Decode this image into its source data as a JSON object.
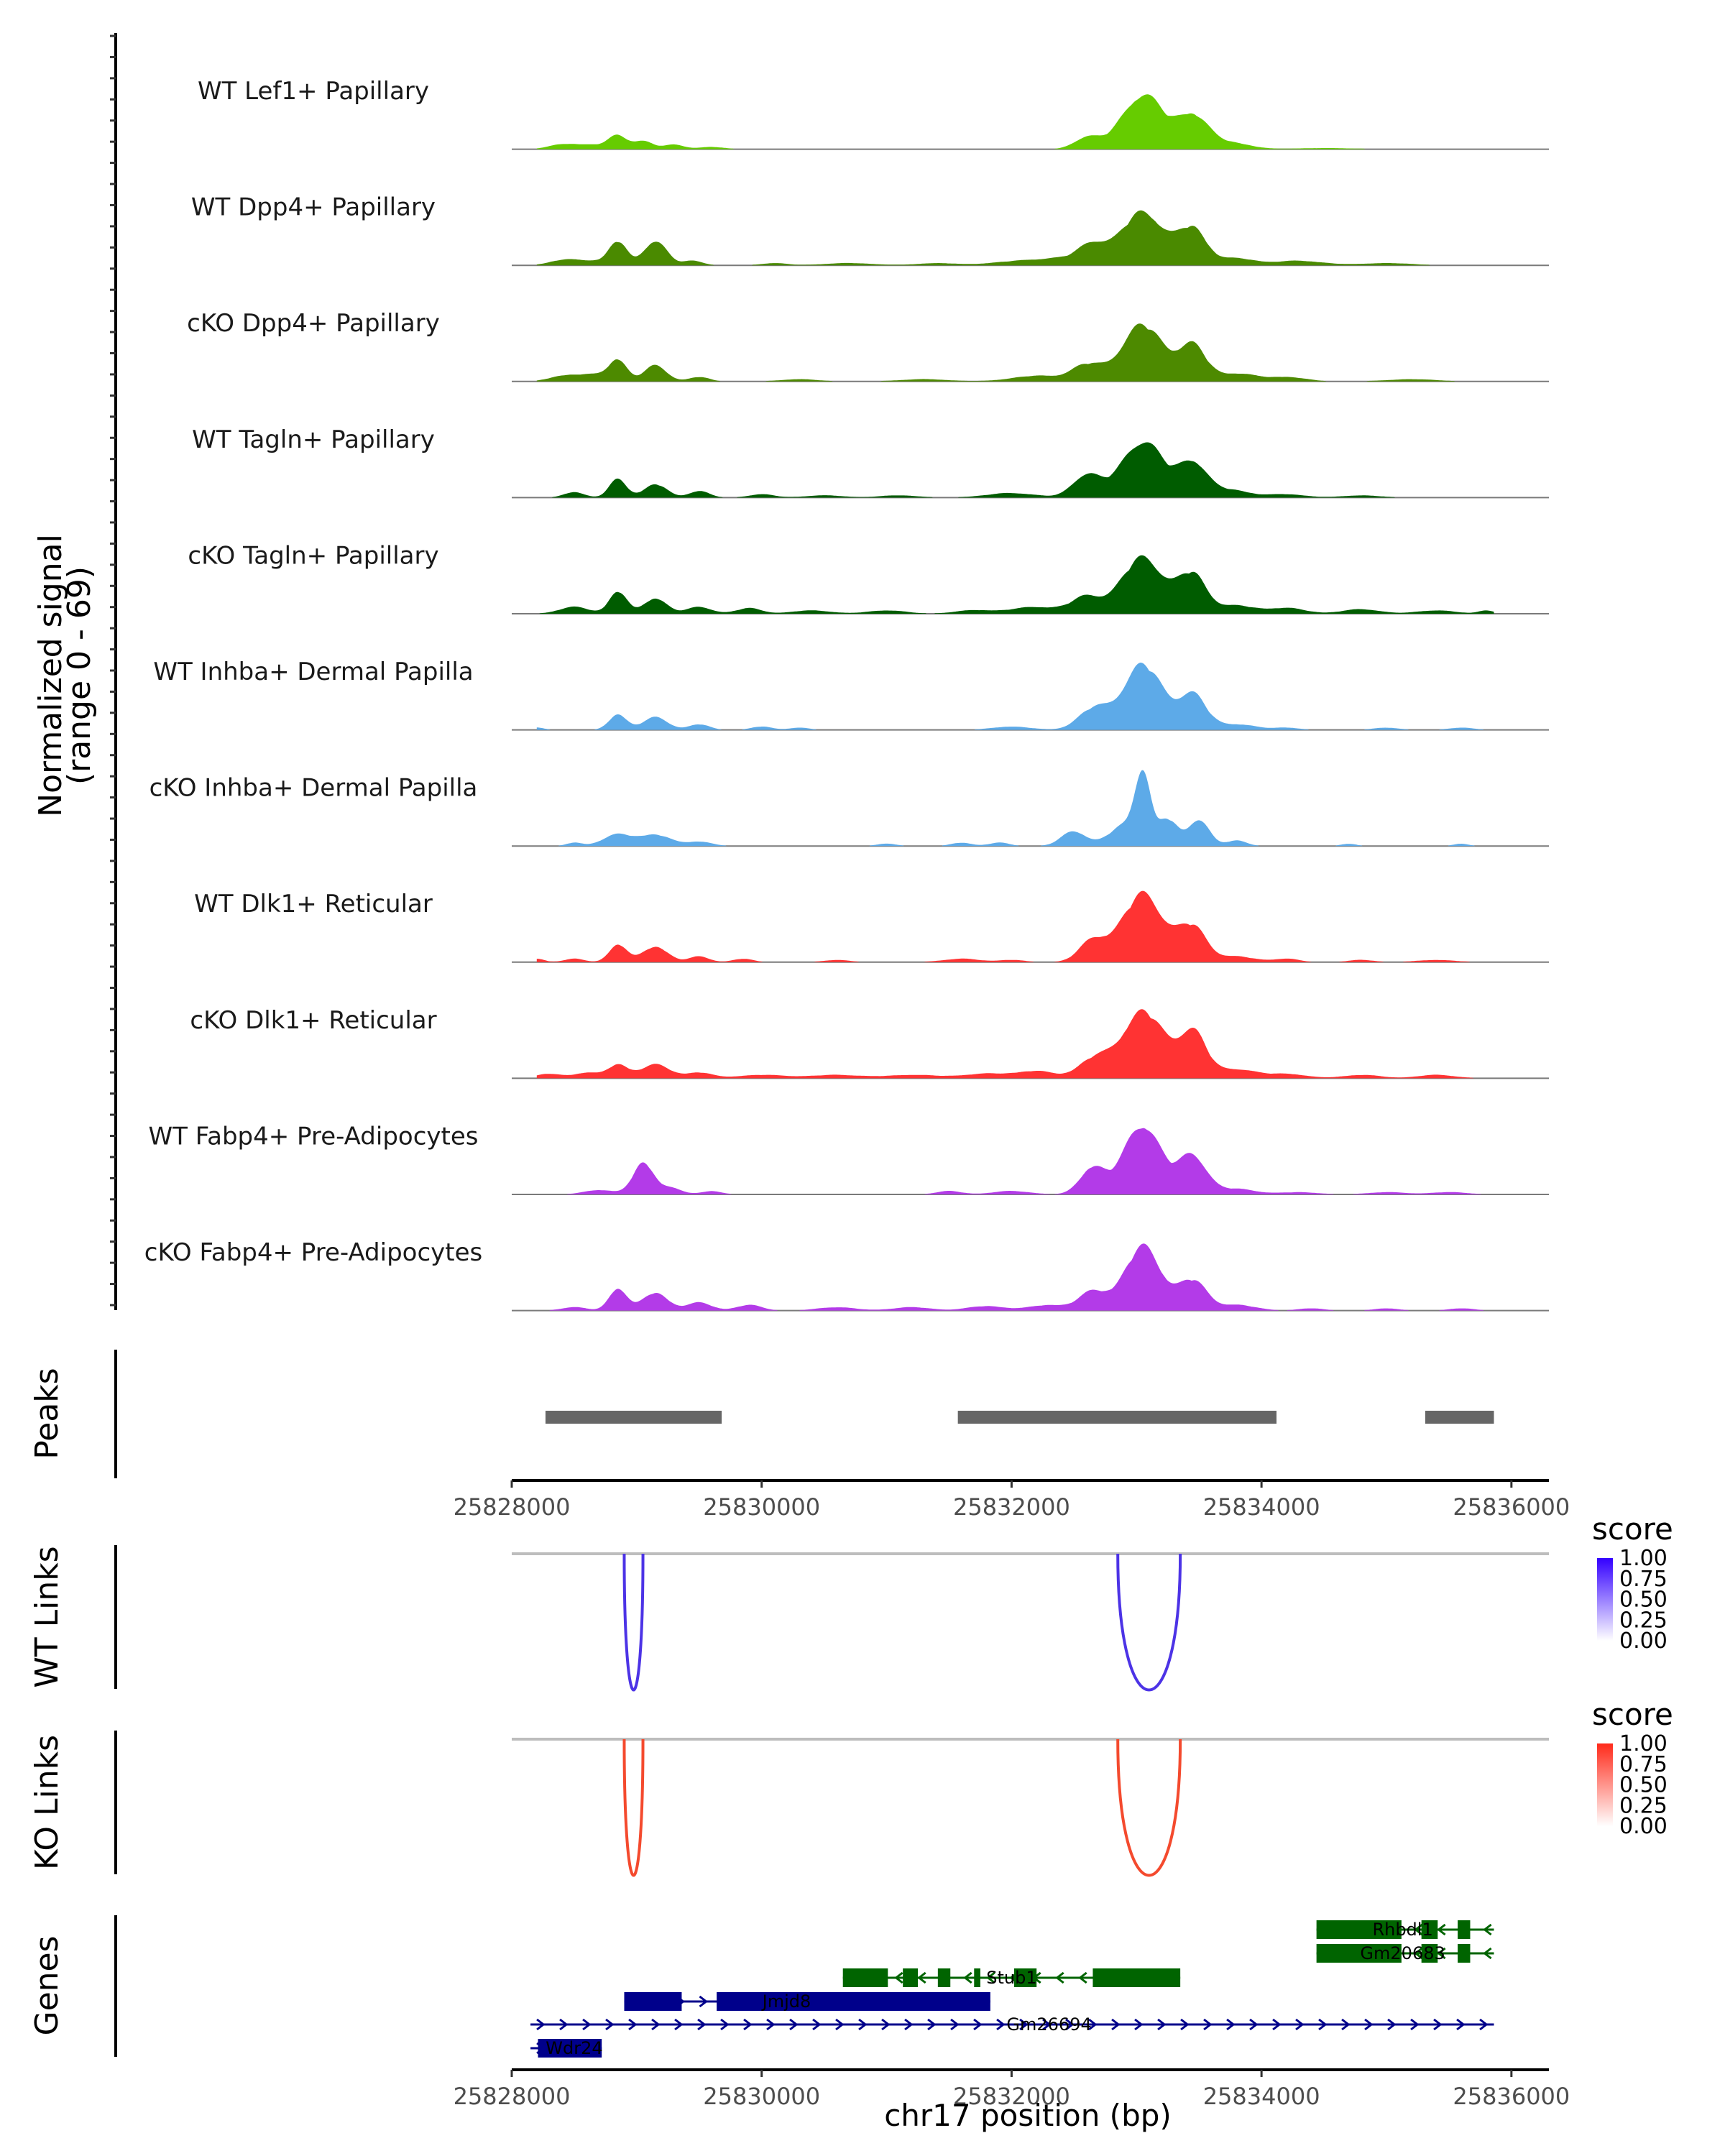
{
  "chart_data": {
    "type": "area",
    "title": "",
    "chromosome": "chr17",
    "xlabel": "chr17 position (bp)",
    "ylabel": "Normalized signal",
    "ylabel_range": "(range 0 - 69)",
    "xlim": [
      25828000,
      25836300
    ],
    "ylim": [
      0,
      69
    ],
    "x_ticks": [
      25828000,
      25830000,
      25832000,
      25834000,
      25836000
    ],
    "tick_labels": [
      "25828000",
      "25830000",
      "25832000",
      "25834000",
      "25836000"
    ],
    "coverage_tracks": [
      {
        "name": "WT Lef1+ Papillary",
        "color": "#66CC00",
        "bumps": [
          [
            25828400,
            3,
            110
          ],
          [
            25828650,
            4,
            180
          ],
          [
            25828850,
            10,
            70
          ],
          [
            25829050,
            7,
            80
          ],
          [
            25829300,
            4,
            80
          ],
          [
            25829600,
            2,
            100
          ],
          [
            25832600,
            10,
            100
          ],
          [
            25833050,
            48,
            170
          ],
          [
            25833450,
            29,
            120
          ],
          [
            25833750,
            6,
            150
          ],
          [
            25834500,
            1,
            250
          ]
        ]
      },
      {
        "name": "WT Dpp4+ Papillary",
        "color": "#4A8A00",
        "bumps": [
          [
            25828400,
            4,
            110
          ],
          [
            25828650,
            4,
            150
          ],
          [
            25828850,
            20,
            70
          ],
          [
            25829150,
            22,
            90
          ],
          [
            25829450,
            4,
            80
          ],
          [
            25830100,
            2,
            100
          ],
          [
            25830700,
            2,
            200
          ],
          [
            25831400,
            2,
            150
          ],
          [
            25832000,
            3,
            200
          ],
          [
            25832400,
            6,
            200
          ],
          [
            25832650,
            16,
            110
          ],
          [
            25833050,
            48,
            170
          ],
          [
            25833450,
            32,
            110
          ],
          [
            25833800,
            6,
            150
          ],
          [
            25834300,
            4,
            200
          ],
          [
            25835000,
            2,
            200
          ]
        ]
      },
      {
        "name": "cKO Dpp4+ Papillary",
        "color": "#4D8A00",
        "bumps": [
          [
            25828400,
            4,
            110
          ],
          [
            25828650,
            6,
            150
          ],
          [
            25828850,
            18,
            70
          ],
          [
            25829150,
            14,
            90
          ],
          [
            25829500,
            4,
            80
          ],
          [
            25830300,
            2,
            150
          ],
          [
            25831300,
            2,
            200
          ],
          [
            25832200,
            5,
            200
          ],
          [
            25832600,
            14,
            120
          ],
          [
            25833050,
            50,
            170
          ],
          [
            25833450,
            30,
            110
          ],
          [
            25833800,
            7,
            150
          ],
          [
            25834200,
            4,
            150
          ],
          [
            25835200,
            2,
            200
          ]
        ]
      },
      {
        "name": "WT Tagln+ Papillary",
        "color": "#005C00",
        "bumps": [
          [
            25828500,
            5,
            80
          ],
          [
            25828850,
            16,
            70
          ],
          [
            25829150,
            12,
            90
          ],
          [
            25829500,
            6,
            80
          ],
          [
            25830000,
            3,
            100
          ],
          [
            25830500,
            2,
            150
          ],
          [
            25831100,
            2,
            150
          ],
          [
            25832000,
            4,
            200
          ],
          [
            25832600,
            20,
            110
          ],
          [
            25833050,
            50,
            170
          ],
          [
            25833450,
            30,
            110
          ],
          [
            25833750,
            7,
            150
          ],
          [
            25834200,
            3,
            150
          ],
          [
            25834800,
            2,
            150
          ]
        ]
      },
      {
        "name": "cKO Tagln+ Papillary",
        "color": "#005C00",
        "bumps": [
          [
            25828500,
            6,
            120
          ],
          [
            25828850,
            20,
            70
          ],
          [
            25829150,
            14,
            90
          ],
          [
            25829500,
            6,
            100
          ],
          [
            25829900,
            5,
            100
          ],
          [
            25830400,
            3,
            150
          ],
          [
            25831000,
            3,
            150
          ],
          [
            25831700,
            3,
            150
          ],
          [
            25832200,
            6,
            200
          ],
          [
            25832600,
            14,
            120
          ],
          [
            25833050,
            50,
            170
          ],
          [
            25833450,
            34,
            110
          ],
          [
            25833800,
            7,
            150
          ],
          [
            25834200,
            5,
            150
          ],
          [
            25834800,
            4,
            150
          ],
          [
            25835400,
            3,
            150
          ],
          [
            25835800,
            3,
            60
          ]
        ]
      },
      {
        "name": "WT Inhba+ Dermal Papilla",
        "color": "#5DAAE8",
        "bumps": [
          [
            25828200,
            2,
            60
          ],
          [
            25828850,
            14,
            70
          ],
          [
            25829150,
            11,
            100
          ],
          [
            25829500,
            5,
            80
          ],
          [
            25830000,
            3,
            80
          ],
          [
            25830300,
            2,
            80
          ],
          [
            25832000,
            3,
            150
          ],
          [
            25832650,
            18,
            120
          ],
          [
            25833050,
            58,
            160
          ],
          [
            25833450,
            30,
            110
          ],
          [
            25833800,
            5,
            150
          ],
          [
            25834200,
            2,
            100
          ],
          [
            25835000,
            2,
            100
          ],
          [
            25835600,
            2,
            100
          ]
        ]
      },
      {
        "name": "cKO Inhba+ Dermal Papilla",
        "color": "#5DAAE8",
        "bumps": [
          [
            25828500,
            3,
            60
          ],
          [
            25828850,
            10,
            120
          ],
          [
            25829150,
            10,
            120
          ],
          [
            25829500,
            4,
            100
          ],
          [
            25831000,
            2,
            80
          ],
          [
            25831600,
            3,
            80
          ],
          [
            25831900,
            3,
            80
          ],
          [
            25832500,
            13,
            100
          ],
          [
            25832900,
            18,
            120
          ],
          [
            25833050,
            62,
            60
          ],
          [
            25833250,
            24,
            80
          ],
          [
            25833500,
            24,
            80
          ],
          [
            25833800,
            5,
            80
          ],
          [
            25834700,
            2,
            60
          ],
          [
            25835600,
            2,
            60
          ]
        ]
      },
      {
        "name": "WT Dlk1+ Reticular",
        "color": "#FF3333",
        "bumps": [
          [
            25828200,
            3,
            60
          ],
          [
            25828500,
            3,
            80
          ],
          [
            25828850,
            16,
            70
          ],
          [
            25829150,
            14,
            100
          ],
          [
            25829500,
            5,
            80
          ],
          [
            25829850,
            3,
            80
          ],
          [
            25830600,
            2,
            100
          ],
          [
            25831600,
            3,
            150
          ],
          [
            25832000,
            2,
            100
          ],
          [
            25832650,
            18,
            110
          ],
          [
            25833050,
            60,
            170
          ],
          [
            25833450,
            30,
            110
          ],
          [
            25833800,
            5,
            150
          ],
          [
            25834200,
            3,
            100
          ],
          [
            25834800,
            2,
            100
          ],
          [
            25835400,
            2,
            150
          ]
        ]
      },
      {
        "name": "cKO Dlk1+ Reticular",
        "color": "#FF3333",
        "bumps": [
          [
            25828300,
            4,
            100
          ],
          [
            25828600,
            5,
            100
          ],
          [
            25828850,
            12,
            80
          ],
          [
            25829150,
            12,
            120
          ],
          [
            25829500,
            5,
            100
          ],
          [
            25830000,
            3,
            200
          ],
          [
            25830600,
            3,
            200
          ],
          [
            25831200,
            3,
            200
          ],
          [
            25831800,
            4,
            200
          ],
          [
            25832200,
            6,
            150
          ],
          [
            25832650,
            16,
            120
          ],
          [
            25833050,
            60,
            170
          ],
          [
            25833450,
            40,
            110
          ],
          [
            25833800,
            8,
            150
          ],
          [
            25834200,
            4,
            150
          ],
          [
            25834800,
            3,
            150
          ],
          [
            25835400,
            3,
            150
          ]
        ]
      },
      {
        "name": "WT Fabp4+ Pre-Adipocytes",
        "color": "#B33BE8",
        "bumps": [
          [
            25828700,
            4,
            120
          ],
          [
            25829050,
            28,
            80
          ],
          [
            25829250,
            6,
            100
          ],
          [
            25829600,
            3,
            80
          ],
          [
            25831500,
            3,
            100
          ],
          [
            25832000,
            3,
            150
          ],
          [
            25832650,
            24,
            100
          ],
          [
            25833050,
            62,
            150
          ],
          [
            25833450,
            34,
            110
          ],
          [
            25833800,
            5,
            150
          ],
          [
            25834300,
            2,
            150
          ],
          [
            25835000,
            2,
            150
          ],
          [
            25835500,
            2,
            150
          ]
        ]
      },
      {
        "name": "cKO Fabp4+ Pre-Adipocytes",
        "color": "#B33BE8",
        "bumps": [
          [
            25828500,
            3,
            100
          ],
          [
            25828850,
            20,
            70
          ],
          [
            25829150,
            16,
            100
          ],
          [
            25829500,
            7,
            100
          ],
          [
            25829900,
            5,
            100
          ],
          [
            25830600,
            3,
            150
          ],
          [
            25831200,
            3,
            150
          ],
          [
            25831800,
            4,
            150
          ],
          [
            25832300,
            5,
            150
          ],
          [
            25832650,
            16,
            110
          ],
          [
            25833050,
            56,
            150
          ],
          [
            25833450,
            26,
            110
          ],
          [
            25833800,
            5,
            150
          ],
          [
            25834400,
            2,
            100
          ],
          [
            25835000,
            2,
            100
          ],
          [
            25835600,
            2,
            100
          ]
        ]
      }
    ],
    "peaks": {
      "label": "Peaks",
      "color": "#666666",
      "regions": [
        [
          25828270,
          25829680
        ],
        [
          25831570,
          25834120
        ],
        [
          25835310,
          25835860
        ]
      ]
    },
    "link_tracks": [
      {
        "label": "WT Links",
        "color": "#4C33E6",
        "legend_colors": [
          "#3300FF",
          "#FFFFFF"
        ],
        "links": [
          {
            "start": 25828900,
            "end": 25829050,
            "score": 1.0
          },
          {
            "start": 25832850,
            "end": 25833350,
            "score": 0.9
          }
        ]
      },
      {
        "label": "KO Links",
        "color": "#F44A2E",
        "legend_colors": [
          "#FF2A1A",
          "#FFFFFF"
        ],
        "links": [
          {
            "start": 25828900,
            "end": 25829050,
            "score": 1.0
          },
          {
            "start": 25832850,
            "end": 25833350,
            "score": 0.9
          }
        ]
      }
    ],
    "legend": {
      "title": "score",
      "ticks": [
        "1.00",
        "0.75",
        "0.50",
        "0.25",
        "0.00"
      ]
    },
    "genes": {
      "label": "Genes",
      "items": [
        {
          "name": "Rhbdl1",
          "strand": "-",
          "color": "#006400",
          "start": 25834440,
          "end": 25835860,
          "exons": [
            [
              25834440,
              25835120
            ],
            [
              25835280,
              25835410
            ],
            [
              25835570,
              25835670
            ]
          ]
        },
        {
          "name": "Gm20683",
          "strand": "-",
          "color": "#006400",
          "start": 25834440,
          "end": 25835860,
          "exons": [
            [
              25834440,
              25835120
            ],
            [
              25835280,
              25835410
            ],
            [
              25835570,
              25835670
            ]
          ]
        },
        {
          "name": "Stub1",
          "strand": "-",
          "color": "#006400",
          "start": 25830650,
          "end": 25833350,
          "exons": [
            [
              25830650,
              25831010
            ],
            [
              25831130,
              25831250
            ],
            [
              25831410,
              25831510
            ],
            [
              25831700,
              25831750
            ],
            [
              25832020,
              25832200
            ],
            [
              25832650,
              25833350
            ]
          ]
        },
        {
          "name": "Jmjd8",
          "strand": "+",
          "color": "#00008B",
          "start": 25828900,
          "end": 25831830,
          "exons": [
            [
              25828900,
              25829360
            ],
            [
              25829640,
              25831830
            ]
          ]
        },
        {
          "name": "Gm26694",
          "strand": "+",
          "color": "#00008B",
          "start": 25828150,
          "end": 25835860,
          "exons": []
        },
        {
          "name": "Wdr24",
          "strand": "+",
          "color": "#00008B",
          "start": 25828150,
          "end": 25828720,
          "exons": [
            [
              25828210,
              25828720
            ]
          ]
        }
      ]
    }
  }
}
